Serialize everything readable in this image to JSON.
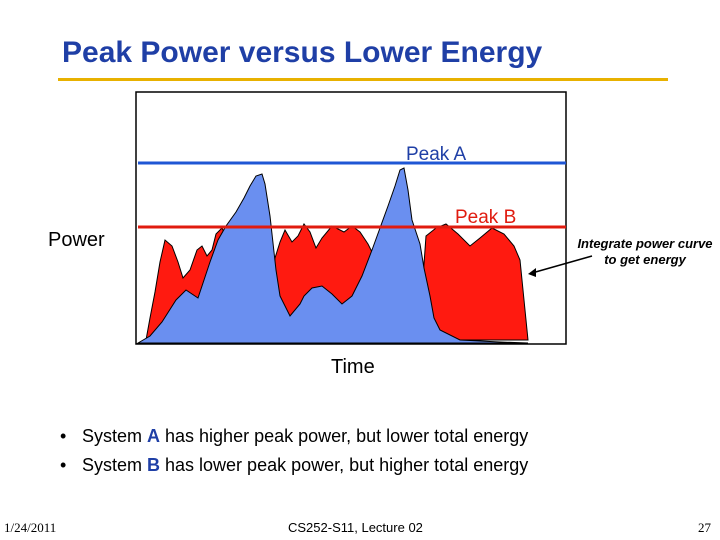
{
  "title": "Peak Power versus Lower Energy",
  "colors": {
    "title": "#1f3fa6",
    "rule": "#e8b100",
    "peak_a_line": "#1f56d4",
    "peak_b_line": "#e01b0f",
    "system_a_fill": "#6a8ff0",
    "system_b_fill": "#ff1a10"
  },
  "diagram": {
    "peak_a_label": "Peak A",
    "peak_b_label": "Peak B",
    "y_label": "Power",
    "x_label": "Time",
    "annotation": "Integrate power curve to get energy"
  },
  "bullets": [
    {
      "prefix": "System ",
      "system": "A",
      "suffix": " has higher peak power, but lower total energy"
    },
    {
      "prefix": "System ",
      "system": "B",
      "suffix": " has lower peak power, but higher total energy"
    }
  ],
  "footer": {
    "date": "1/24/2011",
    "course": "CS252-S11, Lecture 02",
    "page": "27"
  }
}
